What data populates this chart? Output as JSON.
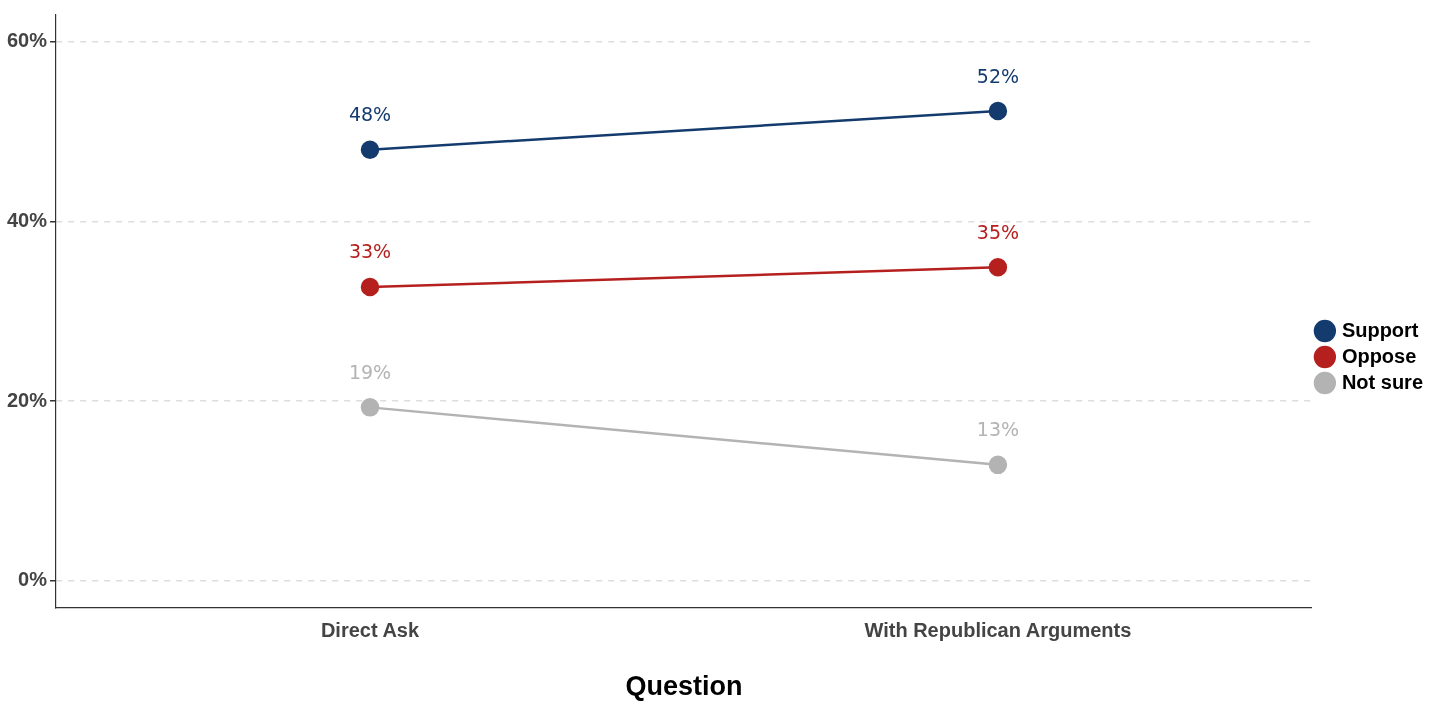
{
  "chart_data": {
    "type": "line",
    "xlabel": "Question",
    "categories": [
      "Direct Ask",
      "With Republican Arguments"
    ],
    "series": [
      {
        "name": "Support",
        "color": "#143b6e",
        "values": [
          48,
          52.3
        ],
        "value_labels": [
          "48%",
          "52%"
        ]
      },
      {
        "name": "Oppose",
        "color": "#b5201e",
        "values": [
          32.7,
          34.9
        ],
        "value_labels": [
          "33%",
          "35%"
        ]
      },
      {
        "name": "Not sure",
        "color": "#b3b3b3",
        "values": [
          19.3,
          12.9
        ],
        "value_labels": [
          "19%",
          "13%"
        ]
      }
    ],
    "ylim": [
      -3,
      63
    ],
    "yticks": [
      {
        "value": 0,
        "label": "0%"
      },
      {
        "value": 20,
        "label": "20%"
      },
      {
        "value": 40,
        "label": "40%"
      },
      {
        "value": 60,
        "label": "60%"
      }
    ],
    "grid": "y",
    "legend": "right",
    "marker": "circle",
    "line_style": "solid"
  }
}
